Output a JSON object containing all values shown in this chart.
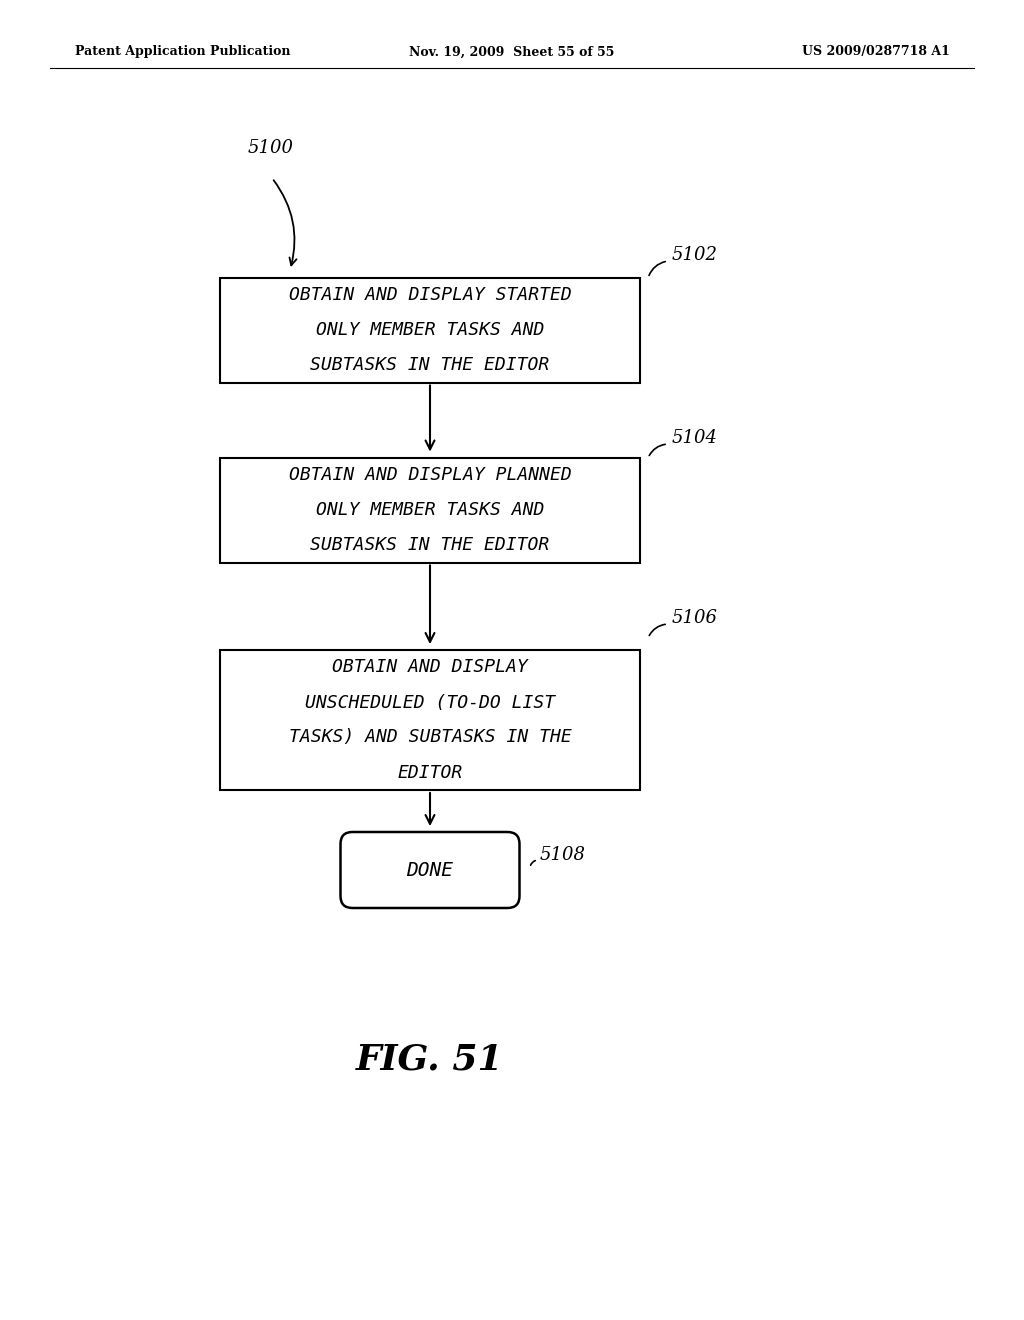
{
  "bg_color": "#ffffff",
  "header_left": "Patent Application Publication",
  "header_mid": "Nov. 19, 2009  Sheet 55 of 55",
  "header_right": "US 2009/0287718 A1",
  "label_5100": "5100",
  "label_5102": "5102",
  "label_5104": "5104",
  "label_5106": "5106",
  "label_5108": "5108",
  "box1_lines": [
    "OBTAIN AND DISPLAY STARTED",
    "ONLY MEMBER TASKS AND",
    "SUBTASKS IN THE EDITOR"
  ],
  "box2_lines": [
    "OBTAIN AND DISPLAY PLANNED",
    "ONLY MEMBER TASKS AND",
    "SUBTASKS IN THE EDITOR"
  ],
  "box3_lines": [
    "OBTAIN AND DISPLAY",
    "UNSCHEDULED (TO-DO LIST",
    "TASKS) AND SUBTASKS IN THE",
    "EDITOR"
  ],
  "done_label": "DONE",
  "fig_label": "FIG. 51",
  "font_size_box": 13,
  "font_size_label": 13,
  "font_size_fig": 26
}
